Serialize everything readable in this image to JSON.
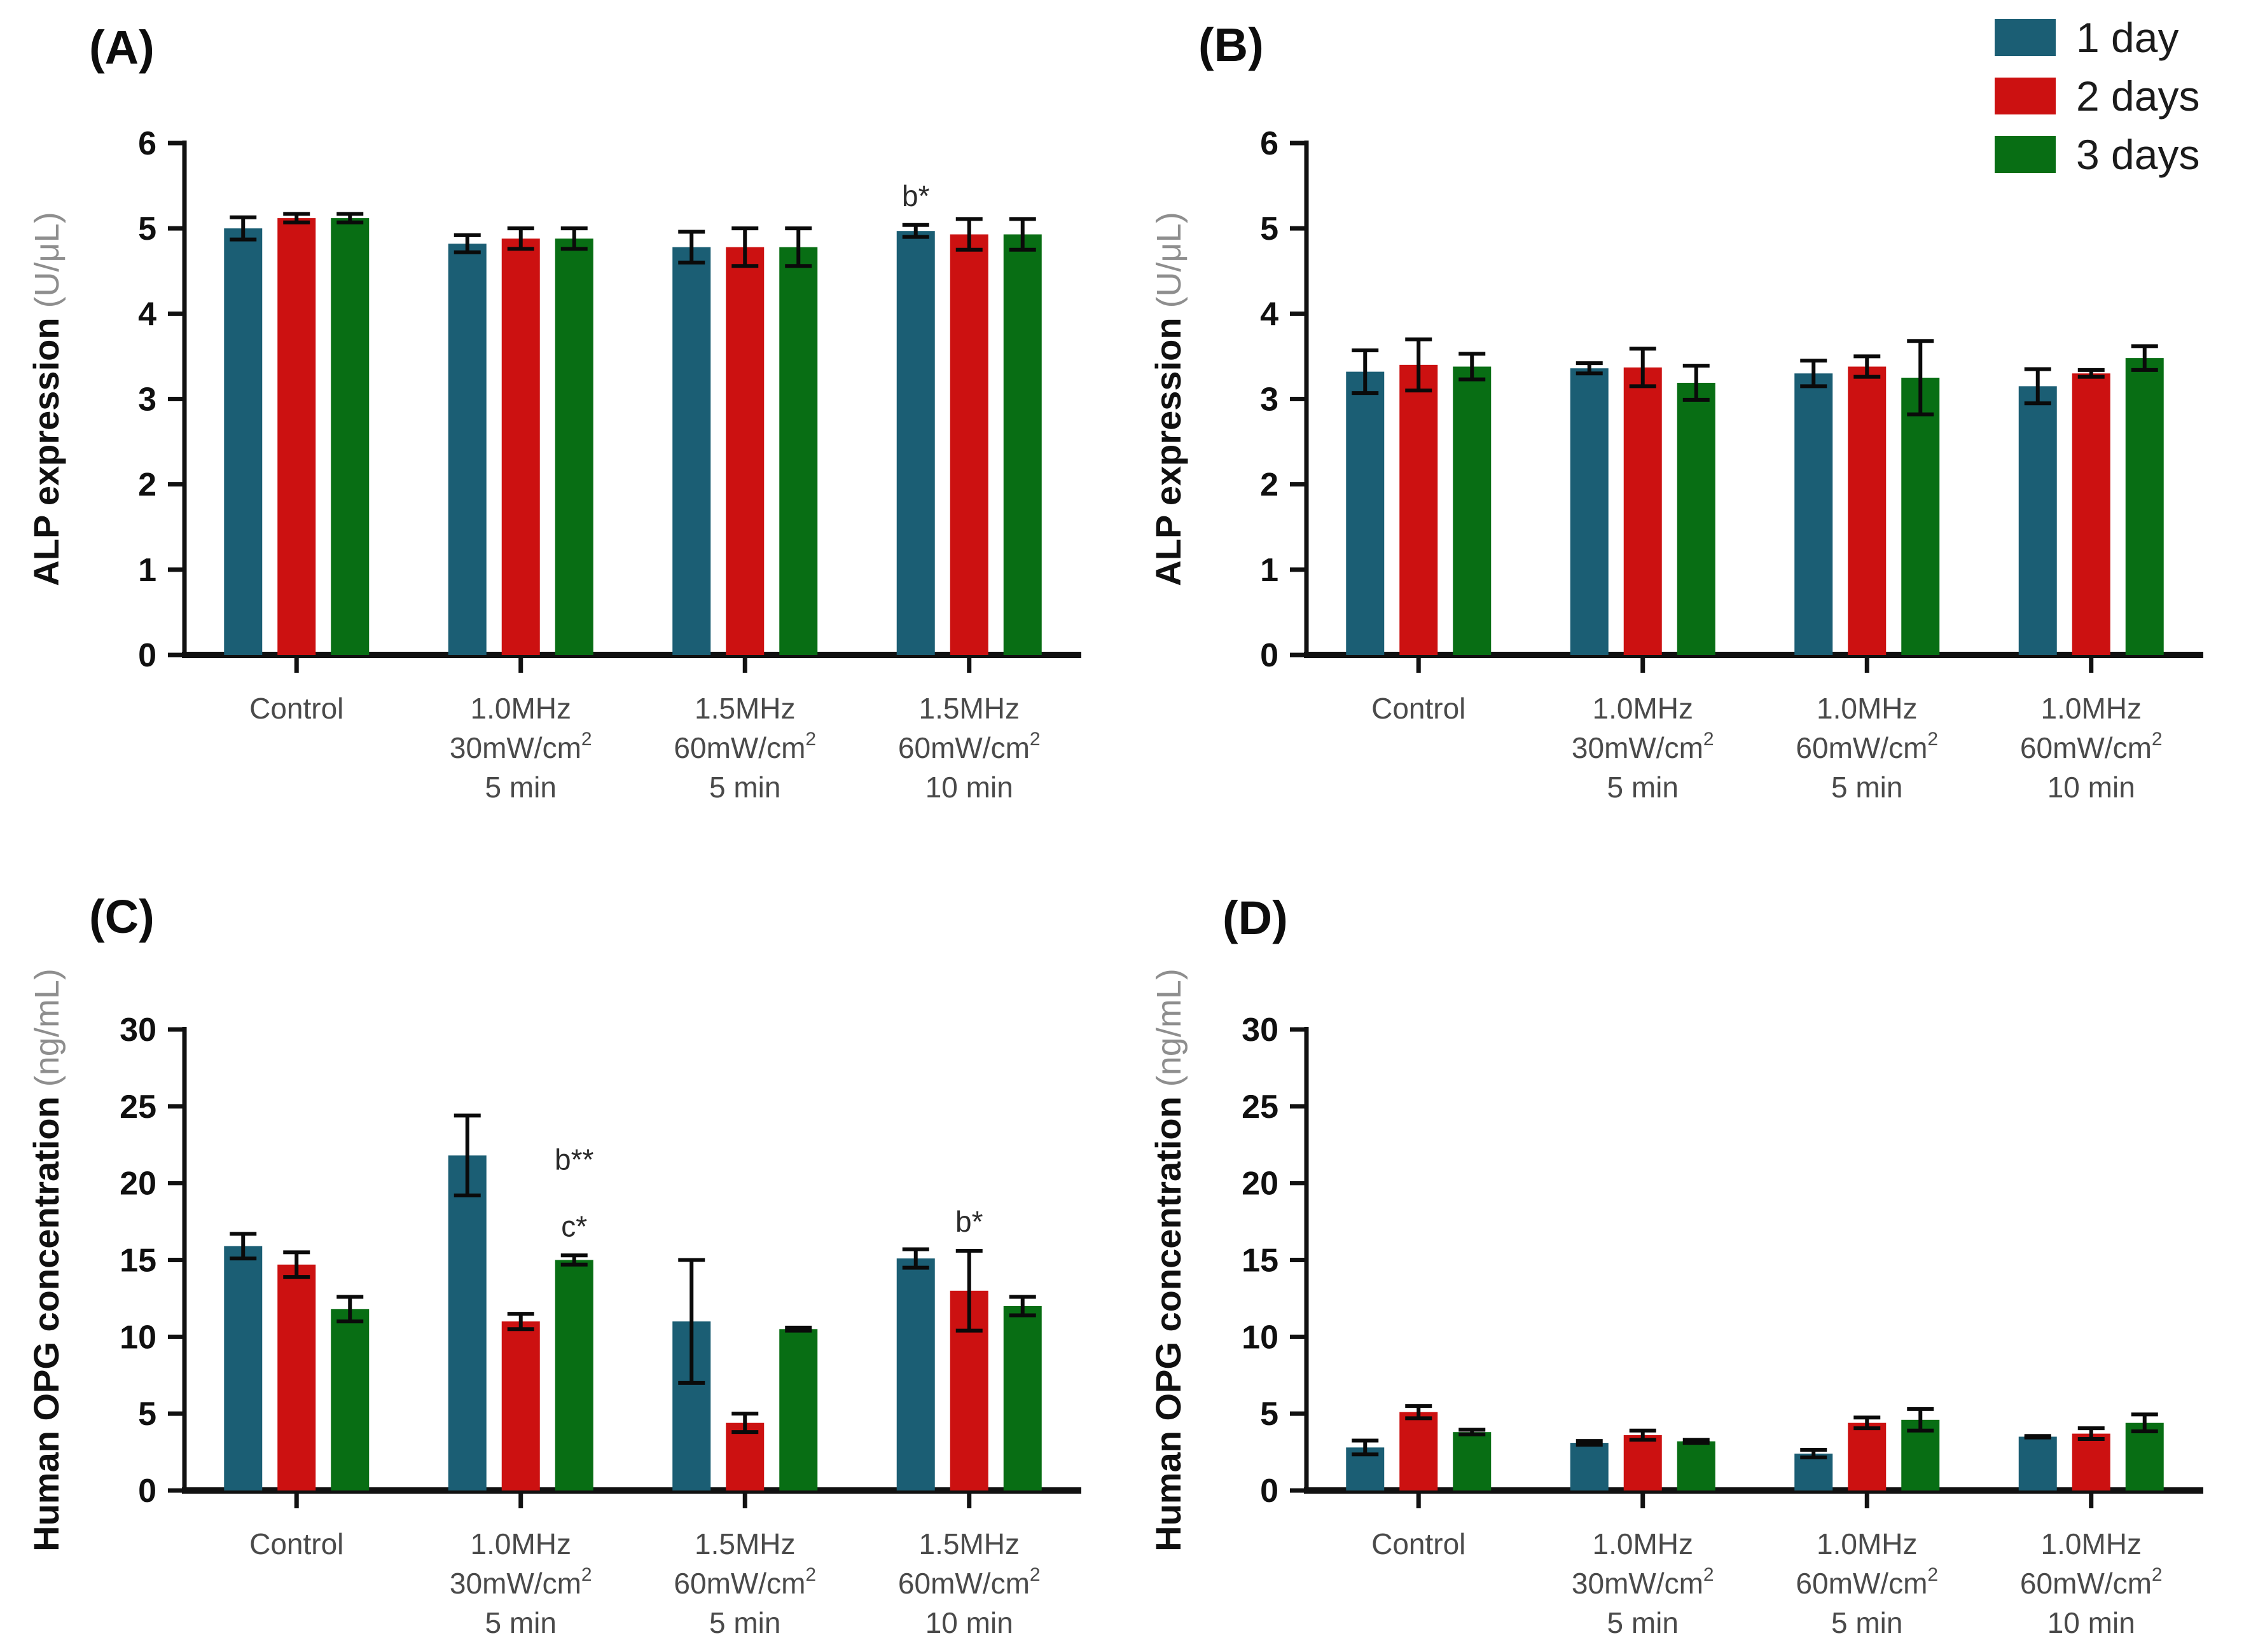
{
  "page": {
    "background": "#ffffff"
  },
  "colors": {
    "series_1_day": "#1B5E74",
    "series_2_days": "#CC1111",
    "series_3_days": "#086E14",
    "axis": "#111111",
    "unit_text": "#8e8e8e",
    "category_text": "#4a4a4a"
  },
  "legend": {
    "items": [
      {
        "label": "1 day",
        "color": "#1B5E74"
      },
      {
        "label": "2 days",
        "color": "#CC1111"
      },
      {
        "label": "3 days",
        "color": "#086E14"
      }
    ]
  },
  "chart_data": [
    {
      "id": "A",
      "panel_label": "(A)",
      "type": "bar",
      "ylabel": "ALP expression",
      "yunit": "(U/μL)",
      "ylim": [
        0,
        6
      ],
      "ytick_step": 1,
      "grid": false,
      "categories": [
        [
          "Control"
        ],
        [
          "1.0MHz",
          "30mW/cm^2",
          "5 min"
        ],
        [
          "1.5MHz",
          "60mW/cm^2",
          "5 min"
        ],
        [
          "1.5MHz",
          "60mW/cm^2",
          "10 min"
        ]
      ],
      "series": [
        {
          "name": "1 day",
          "values": [
            5.0,
            4.82,
            4.78,
            4.97
          ],
          "errors": [
            0.13,
            0.1,
            0.18,
            0.07
          ]
        },
        {
          "name": "2 days",
          "values": [
            5.12,
            4.88,
            4.78,
            4.93
          ],
          "errors": [
            0.05,
            0.12,
            0.22,
            0.18
          ]
        },
        {
          "name": "3 days",
          "values": [
            5.12,
            4.88,
            4.78,
            4.93
          ],
          "errors": [
            0.05,
            0.12,
            0.22,
            0.18
          ]
        }
      ],
      "annotations": [
        {
          "group": 3,
          "series": 0,
          "lines": [
            "b*"
          ]
        }
      ]
    },
    {
      "id": "B",
      "panel_label": "(B)",
      "type": "bar",
      "ylabel": "ALP expression",
      "yunit": "(U/μL)",
      "ylim": [
        0,
        6
      ],
      "ytick_step": 1,
      "grid": false,
      "categories": [
        [
          "Control"
        ],
        [
          "1.0MHz",
          "30mW/cm^2",
          "5 min"
        ],
        [
          "1.0MHz",
          "60mW/cm^2",
          "5 min"
        ],
        [
          "1.0MHz",
          "60mW/cm^2",
          "10 min"
        ]
      ],
      "series": [
        {
          "name": "1 day",
          "values": [
            3.32,
            3.36,
            3.3,
            3.15
          ],
          "errors": [
            0.25,
            0.06,
            0.15,
            0.2
          ]
        },
        {
          "name": "2 days",
          "values": [
            3.4,
            3.37,
            3.38,
            3.3
          ],
          "errors": [
            0.3,
            0.22,
            0.12,
            0.04
          ]
        },
        {
          "name": "3 days",
          "values": [
            3.38,
            3.19,
            3.25,
            3.48
          ],
          "errors": [
            0.15,
            0.2,
            0.43,
            0.14
          ]
        }
      ],
      "annotations": []
    },
    {
      "id": "C",
      "panel_label": "(C)",
      "type": "bar",
      "ylabel": "Human OPG concentration",
      "yunit": "(ng/mL)",
      "ylim": [
        0,
        30
      ],
      "ytick_step": 5,
      "grid": false,
      "categories": [
        [
          "Control"
        ],
        [
          "1.0MHz",
          "30mW/cm^2",
          "5 min"
        ],
        [
          "1.5MHz",
          "60mW/cm^2",
          "5 min"
        ],
        [
          "1.5MHz",
          "60mW/cm^2",
          "10 min"
        ]
      ],
      "series": [
        {
          "name": "1 day",
          "values": [
            15.9,
            21.8,
            11.0,
            15.1
          ],
          "errors": [
            0.8,
            2.6,
            4.0,
            0.6
          ]
        },
        {
          "name": "2 days",
          "values": [
            14.7,
            11.0,
            4.4,
            13.0
          ],
          "errors": [
            0.8,
            0.5,
            0.6,
            2.6
          ]
        },
        {
          "name": "3 days",
          "values": [
            11.8,
            15.0,
            10.5,
            12.0
          ],
          "errors": [
            0.8,
            0.3,
            0.1,
            0.6
          ]
        }
      ],
      "annotations": [
        {
          "group": 1,
          "series": 2,
          "lines": [
            "b**",
            "c*"
          ]
        },
        {
          "group": 3,
          "series": 1,
          "lines": [
            "b*"
          ]
        }
      ]
    },
    {
      "id": "D",
      "panel_label": "(D)",
      "type": "bar",
      "ylabel": "Human OPG concentration",
      "yunit": "(ng/mL)",
      "ylim": [
        0,
        30
      ],
      "ytick_step": 5,
      "grid": false,
      "categories": [
        [
          "Control"
        ],
        [
          "1.0MHz",
          "30mW/cm^2",
          "5 min"
        ],
        [
          "1.0MHz",
          "60mW/cm^2",
          "5 min"
        ],
        [
          "1.0MHz",
          "60mW/cm^2",
          "10 min"
        ]
      ],
      "series": [
        {
          "name": "1 day",
          "values": [
            2.8,
            3.1,
            2.4,
            3.5
          ],
          "errors": [
            0.45,
            0.12,
            0.25,
            0.05
          ]
        },
        {
          "name": "2 days",
          "values": [
            5.1,
            3.6,
            4.4,
            3.7
          ],
          "errors": [
            0.4,
            0.3,
            0.35,
            0.35
          ]
        },
        {
          "name": "3 days",
          "values": [
            3.8,
            3.2,
            4.6,
            4.4
          ],
          "errors": [
            0.15,
            0.1,
            0.7,
            0.55
          ]
        }
      ],
      "annotations": []
    }
  ]
}
